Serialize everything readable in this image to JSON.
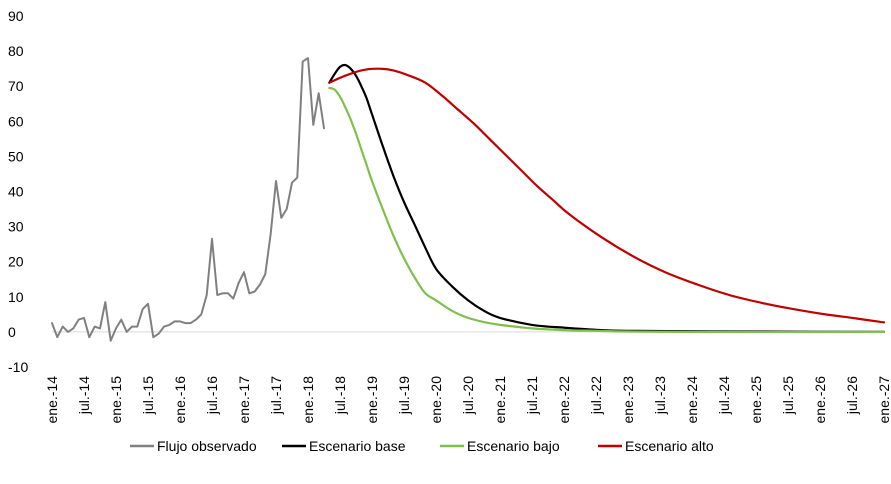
{
  "chart_data": {
    "type": "line",
    "title": "",
    "xlabel": "",
    "ylabel": "",
    "ylim": [
      -10,
      90
    ],
    "yticks": [
      -10,
      0,
      10,
      20,
      30,
      40,
      50,
      60,
      70,
      80,
      90
    ],
    "x_range": [
      "2014-01",
      "2027-01"
    ],
    "x_tick_labels": [
      "ene.-14",
      "jul.-14",
      "ene.-15",
      "jul.-15",
      "ene.-16",
      "jul.-16",
      "ene.-17",
      "jul.-17",
      "ene.-18",
      "jul.-18",
      "ene.-19",
      "jul.-19",
      "ene.-20",
      "jul.-20",
      "ene.-21",
      "jul.-21",
      "ene.-22",
      "jul.-22",
      "ene.-23",
      "jul.-23",
      "ene.-24",
      "jul.-24",
      "ene.-25",
      "jul.-25",
      "ene.-26",
      "jul.-26",
      "ene.-27"
    ],
    "zero_line": true,
    "grid": false,
    "legend_position": "bottom",
    "series": [
      {
        "name": "Flujo observado",
        "color": "#808080",
        "points": [
          [
            "2014-01",
            2.5
          ],
          [
            "2014-02",
            -1.5
          ],
          [
            "2014-03",
            1.5
          ],
          [
            "2014-04",
            0.0
          ],
          [
            "2014-05",
            1.0
          ],
          [
            "2014-06",
            3.5
          ],
          [
            "2014-07",
            4.0
          ],
          [
            "2014-08",
            -1.5
          ],
          [
            "2014-09",
            1.5
          ],
          [
            "2014-10",
            1.0
          ],
          [
            "2014-11",
            8.5
          ],
          [
            "2014-12",
            -2.5
          ],
          [
            "2015-01",
            1.0
          ],
          [
            "2015-02",
            3.5
          ],
          [
            "2015-03",
            0.0
          ],
          [
            "2015-04",
            1.5
          ],
          [
            "2015-05",
            1.5
          ],
          [
            "2015-06",
            6.5
          ],
          [
            "2015-07",
            8.0
          ],
          [
            "2015-08",
            -1.5
          ],
          [
            "2015-09",
            -0.5
          ],
          [
            "2015-10",
            1.5
          ],
          [
            "2015-11",
            2.0
          ],
          [
            "2015-12",
            3.0
          ],
          [
            "2016-01",
            3.0
          ],
          [
            "2016-02",
            2.5
          ],
          [
            "2016-03",
            2.5
          ],
          [
            "2016-04",
            3.5
          ],
          [
            "2016-05",
            5.0
          ],
          [
            "2016-06",
            10.5
          ],
          [
            "2016-07",
            26.5
          ],
          [
            "2016-08",
            10.5
          ],
          [
            "2016-09",
            11.0
          ],
          [
            "2016-10",
            11.0
          ],
          [
            "2016-11",
            9.5
          ],
          [
            "2016-12",
            14.0
          ],
          [
            "2017-01",
            17.0
          ],
          [
            "2017-02",
            11.0
          ],
          [
            "2017-03",
            11.5
          ],
          [
            "2017-04",
            13.5
          ],
          [
            "2017-05",
            16.5
          ],
          [
            "2017-06",
            28.0
          ],
          [
            "2017-07",
            43.0
          ],
          [
            "2017-08",
            32.5
          ],
          [
            "2017-09",
            35.0
          ],
          [
            "2017-10",
            42.5
          ],
          [
            "2017-11",
            44.0
          ],
          [
            "2017-12",
            77.0
          ],
          [
            "2018-01",
            78.0
          ],
          [
            "2018-02",
            59.0
          ],
          [
            "2018-03",
            68.0
          ],
          [
            "2018-04",
            58.0
          ]
        ]
      },
      {
        "name": "Escenario base",
        "color": "#000000",
        "points": [
          [
            "2018-05",
            71.0
          ],
          [
            "2018-06",
            73.5
          ],
          [
            "2018-07",
            75.5
          ],
          [
            "2018-08",
            76.0
          ],
          [
            "2018-09",
            75.0
          ],
          [
            "2018-10",
            73.0
          ],
          [
            "2018-11",
            70.0
          ],
          [
            "2018-12",
            66.5
          ],
          [
            "2019-01",
            62.0
          ],
          [
            "2019-03",
            53.0
          ],
          [
            "2019-05",
            44.5
          ],
          [
            "2019-07",
            37.0
          ],
          [
            "2019-09",
            30.5
          ],
          [
            "2019-11",
            24.0
          ],
          [
            "2020-01",
            18.0
          ],
          [
            "2020-04",
            13.0
          ],
          [
            "2020-07",
            9.0
          ],
          [
            "2020-10",
            6.0
          ],
          [
            "2021-01",
            4.0
          ],
          [
            "2021-07",
            2.0
          ],
          [
            "2022-01",
            1.2
          ],
          [
            "2022-07",
            0.6
          ],
          [
            "2023-01",
            0.3
          ],
          [
            "2024-01",
            0.2
          ],
          [
            "2025-01",
            0.1
          ],
          [
            "2027-01",
            0.0
          ]
        ]
      },
      {
        "name": "Escenario bajo",
        "color": "#7ec04b",
        "points": [
          [
            "2018-05",
            69.5
          ],
          [
            "2018-06",
            69.0
          ],
          [
            "2018-07",
            67.0
          ],
          [
            "2018-08",
            64.0
          ],
          [
            "2018-09",
            60.5
          ],
          [
            "2018-10",
            56.5
          ],
          [
            "2018-11",
            52.0
          ],
          [
            "2018-12",
            47.5
          ],
          [
            "2019-01",
            43.0
          ],
          [
            "2019-03",
            35.0
          ],
          [
            "2019-05",
            27.5
          ],
          [
            "2019-07",
            21.0
          ],
          [
            "2019-09",
            15.5
          ],
          [
            "2019-11",
            11.0
          ],
          [
            "2020-01",
            9.0
          ],
          [
            "2020-04",
            6.0
          ],
          [
            "2020-07",
            4.0
          ],
          [
            "2020-10",
            2.8
          ],
          [
            "2021-01",
            2.0
          ],
          [
            "2021-07",
            1.0
          ],
          [
            "2022-01",
            0.5
          ],
          [
            "2022-07",
            0.3
          ],
          [
            "2023-01",
            0.1
          ],
          [
            "2024-01",
            0.0
          ],
          [
            "2027-01",
            0.0
          ]
        ]
      },
      {
        "name": "Escenario alto",
        "color": "#c00000",
        "points": [
          [
            "2018-05",
            71.0
          ],
          [
            "2018-08",
            73.0
          ],
          [
            "2018-11",
            74.5
          ],
          [
            "2019-02",
            75.0
          ],
          [
            "2019-05",
            74.5
          ],
          [
            "2019-08",
            73.0
          ],
          [
            "2019-11",
            71.0
          ],
          [
            "2020-02",
            67.5
          ],
          [
            "2020-05",
            63.5
          ],
          [
            "2020-08",
            59.5
          ],
          [
            "2020-11",
            55.0
          ],
          [
            "2021-02",
            50.5
          ],
          [
            "2021-05",
            46.0
          ],
          [
            "2021-08",
            41.5
          ],
          [
            "2021-11",
            37.5
          ],
          [
            "2022-02",
            33.5
          ],
          [
            "2022-08",
            27.0
          ],
          [
            "2023-02",
            21.5
          ],
          [
            "2023-08",
            17.0
          ],
          [
            "2024-02",
            13.5
          ],
          [
            "2024-08",
            10.5
          ],
          [
            "2025-02",
            8.3
          ],
          [
            "2025-08",
            6.5
          ],
          [
            "2026-02",
            5.0
          ],
          [
            "2026-08",
            3.8
          ],
          [
            "2027-01",
            2.7
          ]
        ]
      }
    ]
  }
}
